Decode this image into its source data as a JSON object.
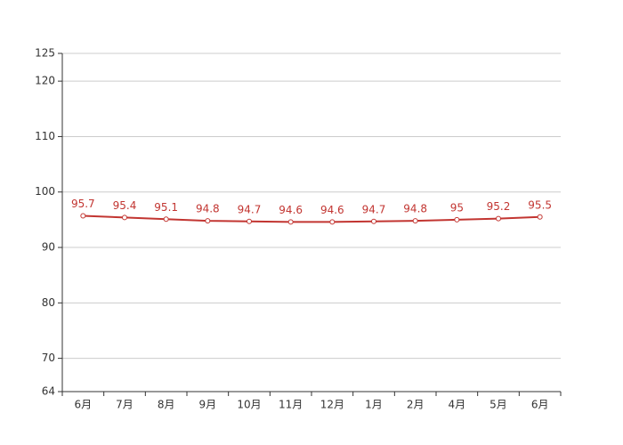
{
  "chart_data": {
    "type": "line",
    "categories": [
      "6月",
      "7月",
      "8月",
      "9月",
      "10月",
      "11月",
      "12月",
      "1月",
      "2月",
      "4月",
      "5月",
      "6月"
    ],
    "values": [
      95.7,
      95.4,
      95.1,
      94.8,
      94.7,
      94.6,
      94.6,
      94.7,
      94.8,
      95,
      95.2,
      95.5
    ],
    "color": "#c23531",
    "ylim": [
      64,
      125
    ],
    "yticks": [
      64,
      70,
      80,
      90,
      100,
      110,
      120,
      125
    ],
    "grid": true
  }
}
